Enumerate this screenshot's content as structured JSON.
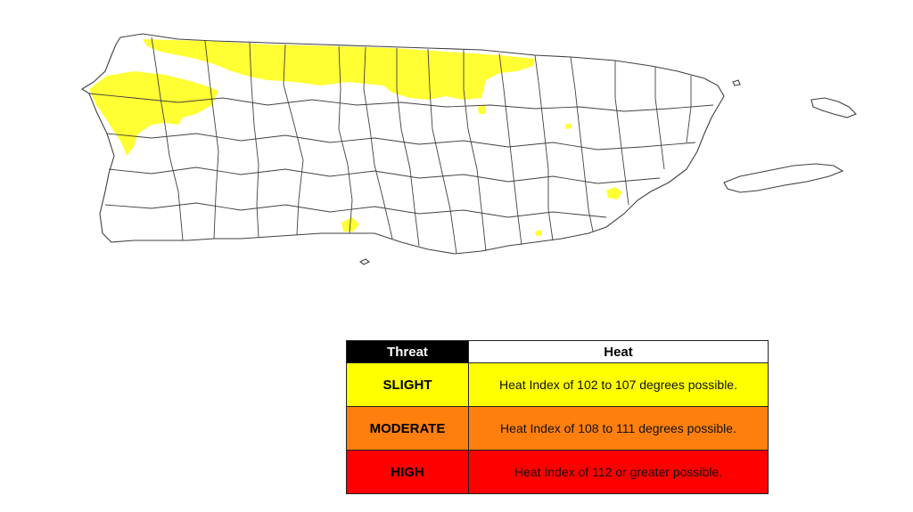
{
  "map": {
    "region": "Puerto Rico",
    "highlighted_threat": "slight",
    "colors": {
      "slight": "#ffff33",
      "outline": "#404040"
    }
  },
  "legend": {
    "header": {
      "threat": "Threat",
      "heat": "Heat"
    },
    "rows": [
      {
        "level": "SLIGHT",
        "description": "Heat Index of 102 to 107 degrees possible.",
        "color": "#ffff00"
      },
      {
        "level": "MODERATE",
        "description": "Heat Index of 108 to 111 degrees possible.",
        "color": "#ff7f0e"
      },
      {
        "level": "HIGH",
        "description": "Heat Index of 112 or greater possible.",
        "color": "#ff0000"
      }
    ]
  }
}
